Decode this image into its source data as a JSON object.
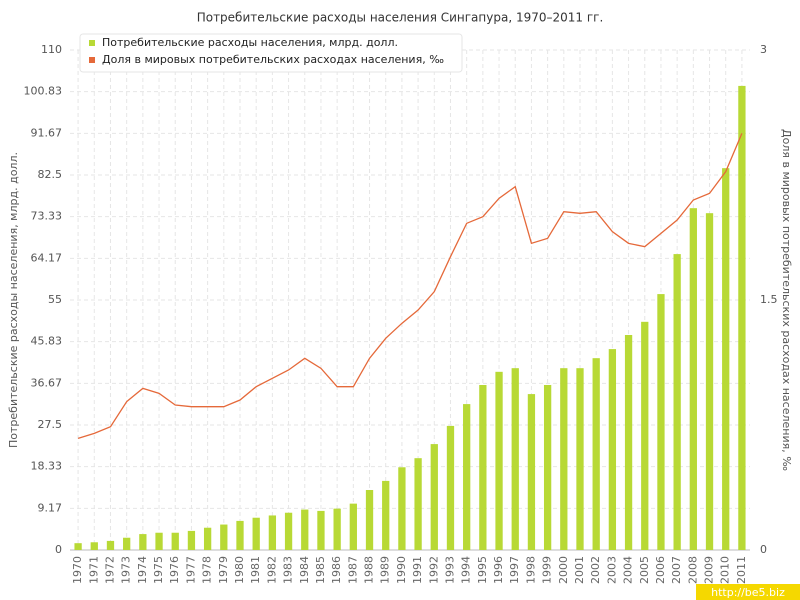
{
  "chart_data": {
    "type": "bar",
    "title": "Потребительские расходы населения Сингапура, 1970–2011 гг.",
    "y_label": "Потребительские расходы населения, млрд. долл.",
    "y2_label": "Доля в мировых потребительских расходах населения, ‰",
    "source": "http://be5.biz",
    "categories": [
      "1970",
      "1971",
      "1972",
      "1973",
      "1974",
      "1975",
      "1976",
      "1977",
      "1978",
      "1979",
      "1980",
      "1981",
      "1982",
      "1983",
      "1984",
      "1985",
      "1986",
      "1987",
      "1988",
      "1989",
      "1990",
      "1991",
      "1992",
      "1993",
      "1994",
      "1995",
      "1996",
      "1997",
      "1998",
      "1999",
      "2000",
      "2001",
      "2002",
      "2003",
      "2004",
      "2005",
      "2006",
      "2007",
      "2008",
      "2009",
      "2010",
      "2011"
    ],
    "series": [
      {
        "name": "Потребительские расходы населения, млрд. долл.",
        "type": "bar",
        "color": "#b8d935",
        "values": [
          1.5,
          1.7,
          2.0,
          2.7,
          3.5,
          3.8,
          3.8,
          4.2,
          4.9,
          5.6,
          6.4,
          7.1,
          7.6,
          8.2,
          8.9,
          8.6,
          9.1,
          10.2,
          13.2,
          15.2,
          18.2,
          20.2,
          23.3,
          27.3,
          32.1,
          36.3,
          39.2,
          40.0,
          34.3,
          36.3,
          40.0,
          40.0,
          42.2,
          44.2,
          47.3,
          50.2,
          56.3,
          65.1,
          75.2,
          74.1,
          84.0,
          102.1
        ]
      },
      {
        "name": "Доля в мировых потребительских расходах населения, ‰",
        "type": "line",
        "axis": "y2",
        "color": "#e5693a",
        "values": [
          0.67,
          0.7,
          0.74,
          0.89,
          0.97,
          0.94,
          0.87,
          0.86,
          0.86,
          0.86,
          0.9,
          0.98,
          1.03,
          1.08,
          1.15,
          1.09,
          0.98,
          0.98,
          1.15,
          1.27,
          1.36,
          1.44,
          1.55,
          1.76,
          1.96,
          2.0,
          2.11,
          2.18,
          1.84,
          1.87,
          2.03,
          2.02,
          2.03,
          1.91,
          1.84,
          1.82,
          1.9,
          1.98,
          2.1,
          2.14,
          2.27,
          2.5
        ]
      }
    ],
    "ylim": [
      0,
      110
    ],
    "yticks": [
      0,
      9.17,
      18.33,
      27.5,
      36.67,
      45.83,
      55,
      64.17,
      73.33,
      82.5,
      91.67,
      100.83,
      110
    ],
    "y2lim": [
      0,
      3
    ],
    "y2ticks": [
      0,
      1.5,
      3
    ],
    "grid": true,
    "legend": "top-left"
  }
}
